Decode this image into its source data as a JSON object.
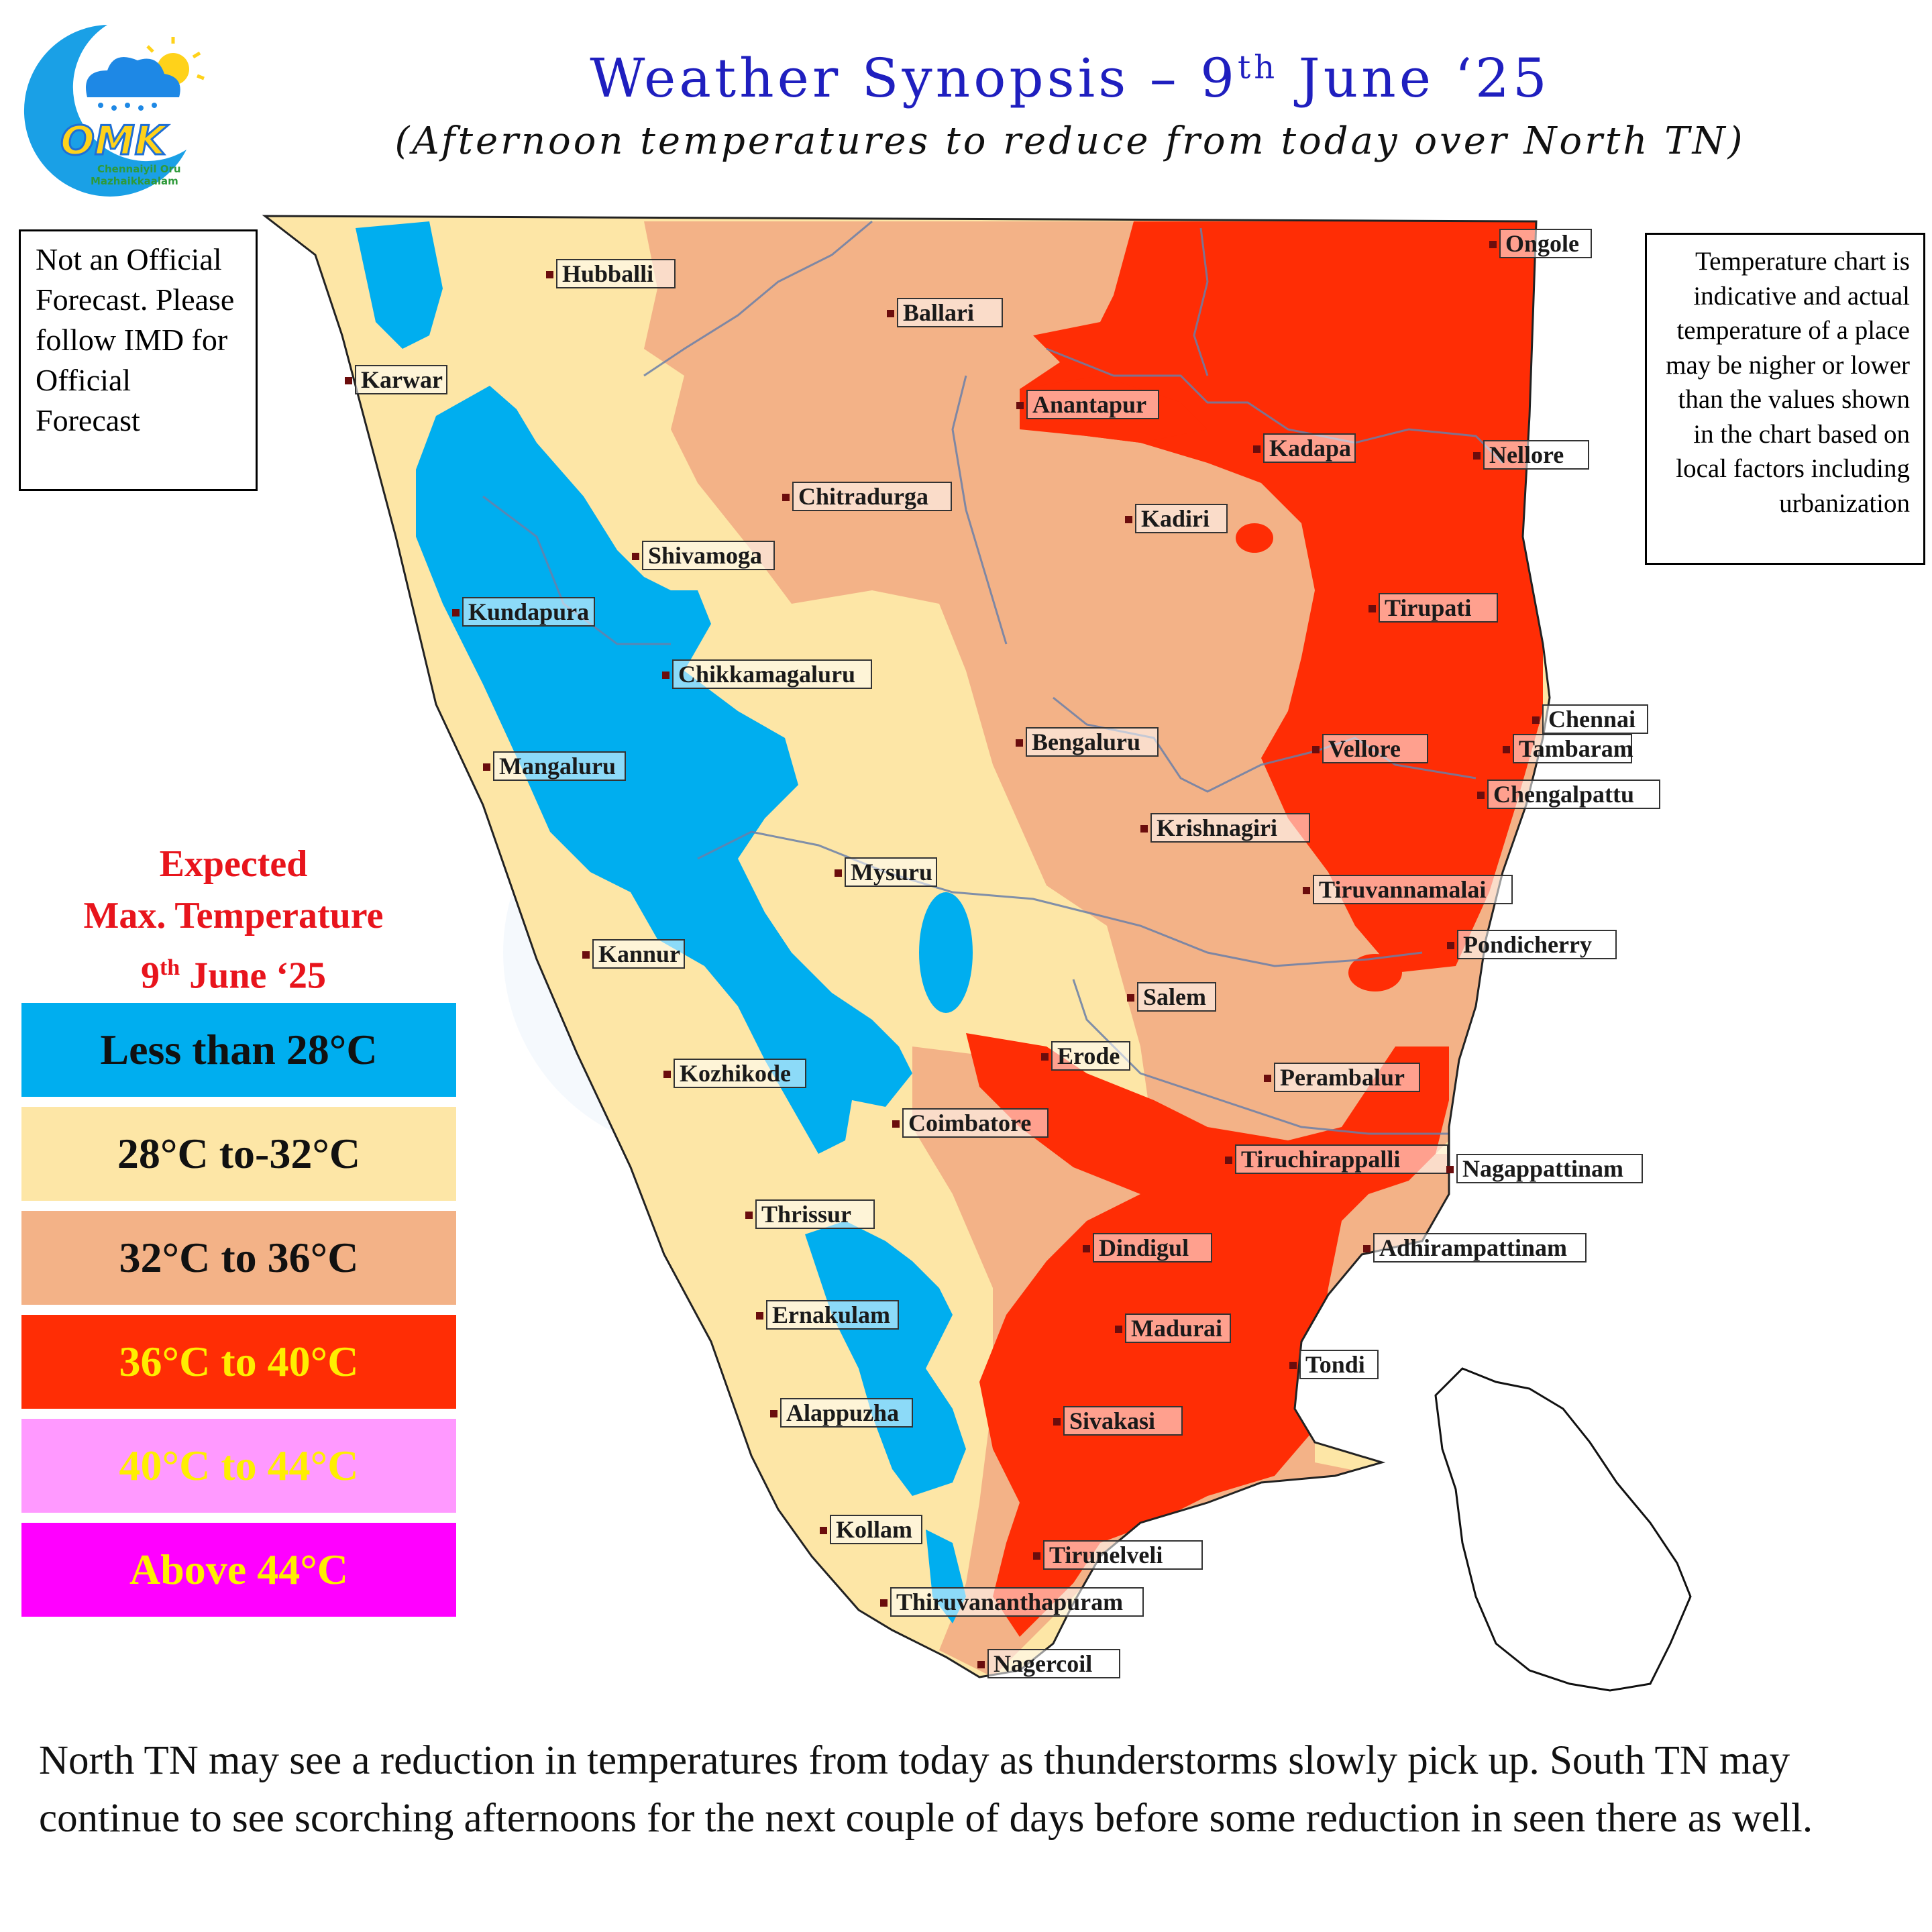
{
  "logo": {
    "name": "omk-logo",
    "line1": "Chennaiyil Oru",
    "line2": "Mazhaikkaalam",
    "mark": "OMK"
  },
  "header": {
    "title_prefix": "Weather Synopsis – 9",
    "title_sup": "th",
    "title_suffix": " June ‘25",
    "subtitle": "(Afternoon temperatures to reduce from today over North TN)"
  },
  "disclaimer": "Not an Official Forecast. Please follow IMD for Official Forecast",
  "note": "Temperature chart is indicative and actual temperature of a place may be nigher or lower than the values shown in the chart based on local factors including urbanization",
  "legend": {
    "title_line1": "Expected",
    "title_line2": "Max. Temperature",
    "title_date_prefix": "9",
    "title_date_sup": "th",
    "title_date_suffix": " June ‘25",
    "items": [
      {
        "label": "Less than 28°C",
        "color": "#00aeef",
        "text_color": "#111111"
      },
      {
        "label": "28°C to-32°C",
        "color": "#fde6a6",
        "text_color": "#111111"
      },
      {
        "label": "32°C to 36°C",
        "color": "#f3b287",
        "text_color": "#111111"
      },
      {
        "label": "36°C to 40°C",
        "color": "#ff2d05",
        "text_color": "#ffee00"
      },
      {
        "label": "40°C to 44°C",
        "color": "#ff99ff",
        "text_color": "#ffee00"
      },
      {
        "label": "Above 44°C",
        "color": "#ff00ff",
        "text_color": "#ffee00"
      }
    ]
  },
  "cities": [
    "Hubballi",
    "Ballari",
    "Ongole",
    "Karwar",
    "Anantapur",
    "Kadapa",
    "Nellore",
    "Chitradurga",
    "Kadiri",
    "Shivamoga",
    "Kundapura",
    "Tirupati",
    "Chikkamagaluru",
    "Chennai",
    "Bengaluru",
    "Vellore",
    "Tambaram",
    "Mangaluru",
    "Chengalpattu",
    "Krishnagiri",
    "Mysuru",
    "Tiruvannamalai",
    "Kannur",
    "Pondicherry",
    "Salem",
    "Erode",
    "Kozhikode",
    "Perambalur",
    "Coimbatore",
    "Tiruchirappalli",
    "Nagappattinam",
    "Thrissur",
    "Dindigul",
    "Adhirampattinam",
    "Ernakulam",
    "Madurai",
    "Tondi",
    "Alappuzha",
    "Sivakasi",
    "Kollam",
    "Tirunelveli",
    "Thiruvananthapuram",
    "Nagercoil"
  ],
  "footer": "North TN may see a reduction in temperatures from today as thunderstorms slowly pick up.  South TN may continue to see scorching afternoons for the next couple of days before some reduction in seen there as well."
}
